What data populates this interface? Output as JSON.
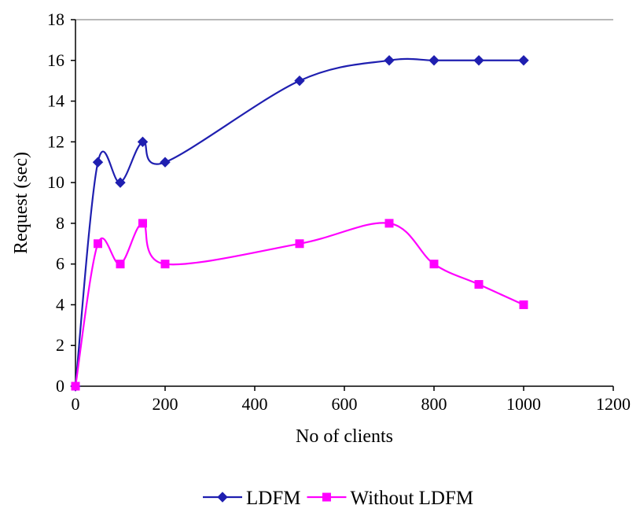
{
  "chart_data": {
    "type": "line",
    "title": "",
    "xlabel": "No of clients",
    "ylabel": "Request (sec)",
    "xlim": [
      0,
      1200
    ],
    "ylim": [
      0,
      18
    ],
    "xticks": [
      0,
      200,
      400,
      600,
      800,
      1000,
      1200
    ],
    "yticks": [
      0,
      2,
      4,
      6,
      8,
      10,
      12,
      14,
      16,
      18
    ],
    "grid": "top border line only",
    "legend_position": "bottom-center",
    "series": [
      {
        "name": "LDFM",
        "color": "#1f1fb0",
        "marker": "diamond",
        "x": [
          0,
          50,
          100,
          150,
          200,
          500,
          700,
          800,
          900,
          1000
        ],
        "y": [
          0,
          11,
          10,
          12,
          11,
          15,
          16,
          16,
          16,
          16
        ]
      },
      {
        "name": "Without LDFM",
        "color": "#ff00ff",
        "marker": "square",
        "x": [
          0,
          50,
          100,
          150,
          200,
          500,
          700,
          800,
          900,
          1000
        ],
        "y": [
          0,
          7,
          6,
          8,
          6,
          7,
          8,
          6,
          5,
          4
        ]
      }
    ]
  }
}
